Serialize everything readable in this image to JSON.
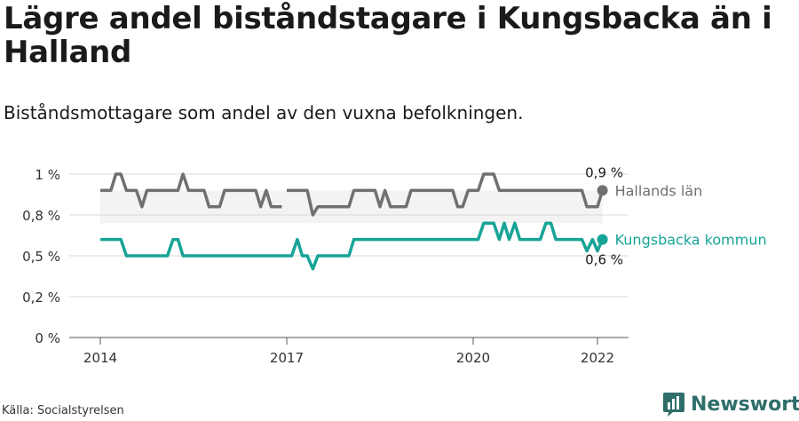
{
  "title": "Lägre andel biståndstagare i Kungsbacka än i Halland",
  "subtitle": "Biståndsmottagare som andel av den vuxna befolkningen.",
  "source": "Källa: Socialstyrelsen",
  "brand": "Newsworthy",
  "colors": {
    "halland": "#707070",
    "kungsbacka": "#17a497",
    "band": "#f3f3f3",
    "grid": "#d9d9d9"
  },
  "chart_data": {
    "type": "line",
    "x_ticks": [
      {
        "value": 2014,
        "label": "2014"
      },
      {
        "value": 2017,
        "label": "2017"
      },
      {
        "value": 2020,
        "label": "2020"
      },
      {
        "value": 2022,
        "label": "2022"
      }
    ],
    "y_ticks": [
      {
        "value": 0,
        "label": "0 %"
      },
      {
        "value": 0.25,
        "label": "0,2 %"
      },
      {
        "value": 0.5,
        "label": "0,5 %"
      },
      {
        "value": 0.75,
        "label": "0,8 %"
      },
      {
        "value": 1.0,
        "label": "1 %"
      }
    ],
    "ylim": [
      0,
      1.0
    ],
    "xlim": [
      2013.5,
      2022.5
    ],
    "grid": true,
    "series": [
      {
        "name": "Hallands län",
        "end_label": "0,9 %",
        "color_key": "halland",
        "segments": [
          [
            [
              2014.0,
              0.9
            ],
            [
              2014.17,
              0.9
            ],
            [
              2014.25,
              1.0
            ],
            [
              2014.33,
              1.0
            ],
            [
              2014.42,
              0.9
            ],
            [
              2014.58,
              0.9
            ],
            [
              2014.67,
              0.8
            ],
            [
              2014.75,
              0.9
            ],
            [
              2015.25,
              0.9
            ],
            [
              2015.33,
              1.0
            ],
            [
              2015.42,
              0.9
            ],
            [
              2015.67,
              0.9
            ],
            [
              2015.75,
              0.8
            ],
            [
              2015.92,
              0.8
            ],
            [
              2016.0,
              0.9
            ],
            [
              2016.5,
              0.9
            ],
            [
              2016.58,
              0.8
            ],
            [
              2016.67,
              0.9
            ],
            [
              2016.75,
              0.8
            ],
            [
              2016.92,
              0.8
            ]
          ],
          [
            [
              2017.0,
              0.9
            ],
            [
              2017.33,
              0.9
            ],
            [
              2017.42,
              0.75
            ],
            [
              2017.5,
              0.8
            ],
            [
              2018.0,
              0.8
            ],
            [
              2018.08,
              0.9
            ],
            [
              2018.42,
              0.9
            ],
            [
              2018.5,
              0.8
            ],
            [
              2018.58,
              0.9
            ],
            [
              2018.67,
              0.8
            ],
            [
              2018.92,
              0.8
            ],
            [
              2019.0,
              0.9
            ],
            [
              2019.67,
              0.9
            ],
            [
              2019.75,
              0.8
            ],
            [
              2019.83,
              0.8
            ],
            [
              2019.92,
              0.9
            ],
            [
              2020.08,
              0.9
            ],
            [
              2020.17,
              1.0
            ],
            [
              2020.33,
              1.0
            ],
            [
              2020.42,
              0.9
            ],
            [
              2021.75,
              0.9
            ],
            [
              2021.83,
              0.8
            ],
            [
              2022.0,
              0.8
            ],
            [
              2022.08,
              0.9
            ]
          ]
        ]
      },
      {
        "name": "Kungsbacka kommun",
        "end_label": "0,6 %",
        "color_key": "kungsbacka",
        "segments": [
          [
            [
              2014.0,
              0.6
            ],
            [
              2014.33,
              0.6
            ],
            [
              2014.42,
              0.5
            ],
            [
              2015.08,
              0.5
            ],
            [
              2015.17,
              0.6
            ],
            [
              2015.25,
              0.6
            ],
            [
              2015.33,
              0.5
            ],
            [
              2017.08,
              0.5
            ],
            [
              2017.17,
              0.6
            ],
            [
              2017.25,
              0.5
            ],
            [
              2017.33,
              0.5
            ],
            [
              2017.42,
              0.42
            ],
            [
              2017.5,
              0.5
            ],
            [
              2018.0,
              0.5
            ],
            [
              2018.08,
              0.6
            ],
            [
              2020.08,
              0.6
            ],
            [
              2020.17,
              0.7
            ],
            [
              2020.33,
              0.7
            ],
            [
              2020.42,
              0.6
            ],
            [
              2020.5,
              0.7
            ],
            [
              2020.58,
              0.6
            ],
            [
              2020.67,
              0.7
            ],
            [
              2020.75,
              0.6
            ],
            [
              2021.08,
              0.6
            ],
            [
              2021.17,
              0.7
            ],
            [
              2021.25,
              0.7
            ],
            [
              2021.33,
              0.6
            ],
            [
              2021.75,
              0.6
            ],
            [
              2021.83,
              0.53
            ],
            [
              2021.92,
              0.6
            ],
            [
              2022.0,
              0.53
            ],
            [
              2022.08,
              0.6
            ]
          ]
        ]
      }
    ]
  }
}
